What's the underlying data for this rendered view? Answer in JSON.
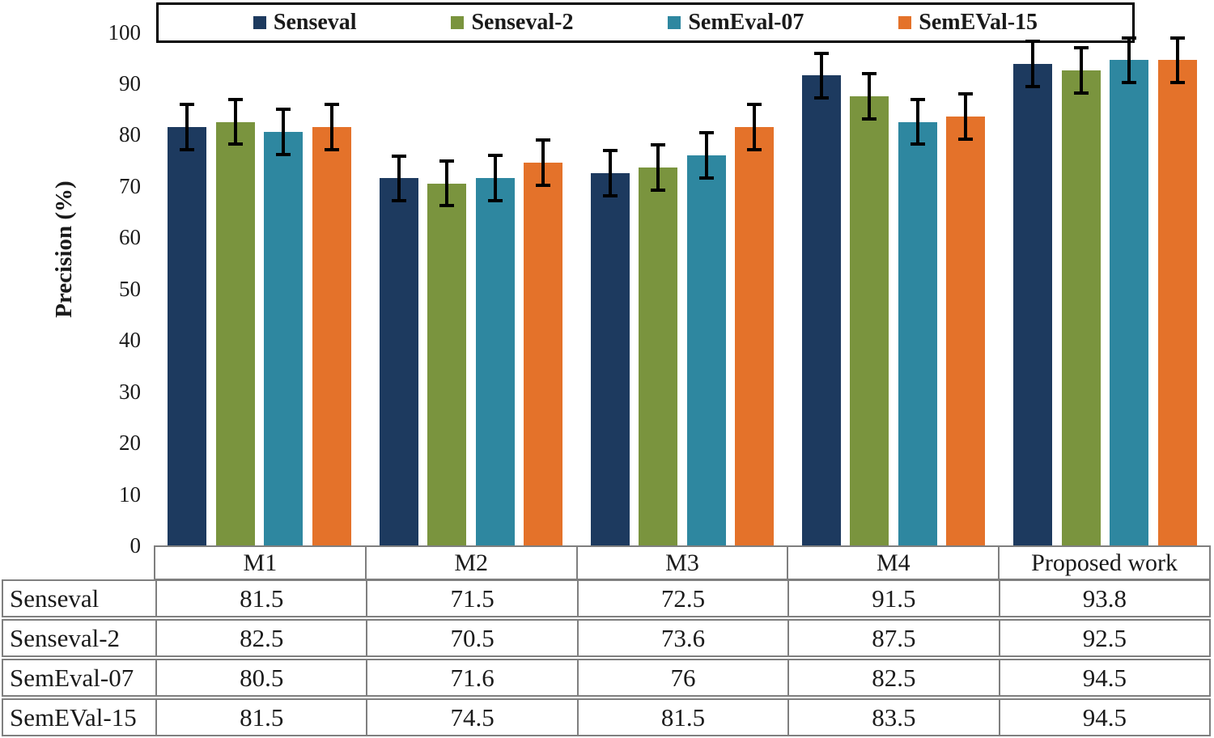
{
  "chart_data": {
    "type": "bar",
    "title": "",
    "ylabel": "Precision (%)",
    "xlabel": "",
    "ylim": [
      0,
      100
    ],
    "yticks": [
      0,
      10,
      20,
      30,
      40,
      50,
      60,
      70,
      80,
      90,
      100
    ],
    "grid": false,
    "legend_position": "top-boxed",
    "categories": [
      "M1",
      "M2",
      "M3",
      "M4",
      "Proposed work"
    ],
    "series": [
      {
        "name": "Senseval",
        "color": "#1d3a5f",
        "values": [
          81.5,
          71.5,
          72.5,
          91.5,
          93.8
        ]
      },
      {
        "name": "Senseval-2",
        "color": "#7a943e",
        "values": [
          82.5,
          70.5,
          73.6,
          87.5,
          92.5
        ]
      },
      {
        "name": "SemEval-07",
        "color": "#2e87a0",
        "values": [
          80.5,
          71.6,
          76,
          82.5,
          94.5
        ]
      },
      {
        "name": "SemEVal-15",
        "color": "#e4722a",
        "values": [
          81.5,
          74.5,
          81.5,
          83.5,
          94.5
        ]
      }
    ],
    "error_bar_plus_minus": 4.7,
    "error_bar_color": "#000000"
  },
  "data_table": {
    "column_headers": [
      "M1",
      "M2",
      "M3",
      "M4",
      "Proposed work"
    ],
    "rows": [
      {
        "label": "Senseval",
        "values": [
          81.5,
          71.5,
          72.5,
          91.5,
          93.8
        ]
      },
      {
        "label": "Senseval-2",
        "values": [
          82.5,
          70.5,
          73.6,
          87.5,
          92.5
        ]
      },
      {
        "label": "SemEval-07",
        "values": [
          80.5,
          71.6,
          76,
          82.5,
          94.5
        ]
      },
      {
        "label": "SemEVal-15",
        "values": [
          81.5,
          74.5,
          81.5,
          83.5,
          94.5
        ]
      }
    ],
    "border_color": "#7f7f7f"
  }
}
